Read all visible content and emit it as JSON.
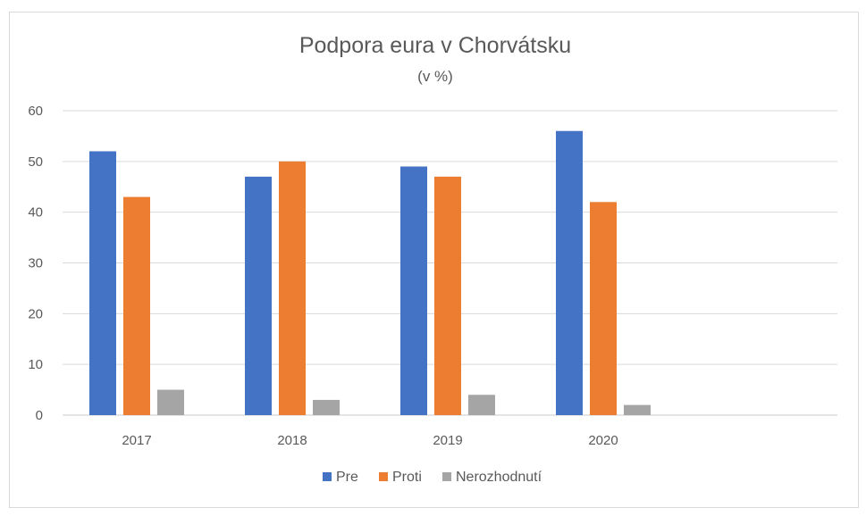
{
  "chart_data": {
    "type": "bar",
    "title": "Podpora eura v Chorvátsku",
    "subtitle": "(v %)",
    "xlabel": "",
    "ylabel": "",
    "categories": [
      "2017",
      "2018",
      "2019",
      "2020"
    ],
    "series": [
      {
        "name": "Pre",
        "color": "#4472C4",
        "values": [
          52,
          47,
          49,
          56
        ]
      },
      {
        "name": "Proti",
        "color": "#ED7D31",
        "values": [
          43,
          50,
          47,
          42
        ]
      },
      {
        "name": "Nerozhodnutí",
        "color": "#A5A5A5",
        "values": [
          5,
          3,
          4,
          2
        ]
      }
    ],
    "ylim": [
      0,
      60
    ],
    "yticks": [
      "0",
      "10",
      "20",
      "30",
      "40",
      "50",
      "60"
    ],
    "grid": true,
    "legend_position": "bottom"
  }
}
